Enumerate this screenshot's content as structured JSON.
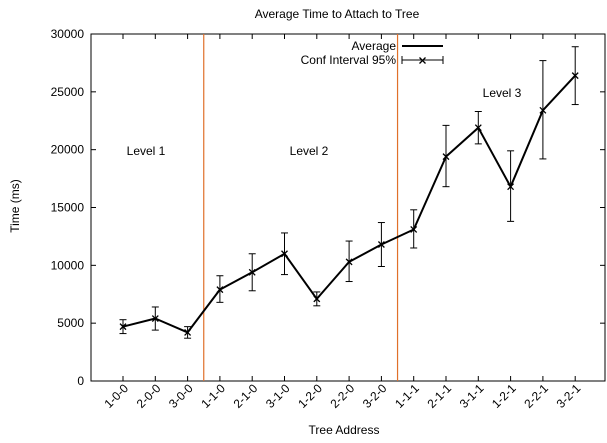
{
  "chart_data": {
    "type": "line",
    "title": "Average Time to Attach to Tree",
    "xlabel": "Tree Address",
    "ylabel": "Time (ms)",
    "ylim": [
      0,
      30000
    ],
    "yticks": [
      0,
      5000,
      10000,
      15000,
      20000,
      25000,
      30000
    ],
    "grid": false,
    "legend_position": "top-right",
    "categories": [
      "1-0-0",
      "2-0-0",
      "3-0-0",
      "1-1-0",
      "2-1-0",
      "3-1-0",
      "1-2-0",
      "2-2-0",
      "3-2-0",
      "1-1-1",
      "2-1-1",
      "3-1-1",
      "1-2-1",
      "2-2-1",
      "3-2-1"
    ],
    "series": [
      {
        "name": "Average",
        "style": "line",
        "values": [
          4700,
          5400,
          4200,
          7900,
          9400,
          11000,
          7100,
          10300,
          11800,
          13100,
          19400,
          21900,
          16800,
          23400,
          26400
        ]
      },
      {
        "name": "Conf Interval 95%",
        "style": "errorbar",
        "lower": [
          4100,
          4400,
          3700,
          6800,
          7800,
          9200,
          6500,
          8600,
          9900,
          11500,
          16800,
          20500,
          13800,
          19200,
          23900
        ],
        "upper": [
          5300,
          6400,
          4700,
          9100,
          11000,
          12800,
          7700,
          12100,
          13700,
          14800,
          22100,
          23300,
          19900,
          27700,
          28900
        ]
      }
    ],
    "level_separators_after": [
      3,
      9
    ],
    "level_labels": [
      "Level 1",
      "Level 2",
      "Level 3"
    ],
    "colors": {
      "line": "#000000",
      "separator": "#e0702a",
      "axis": "#000000"
    }
  }
}
